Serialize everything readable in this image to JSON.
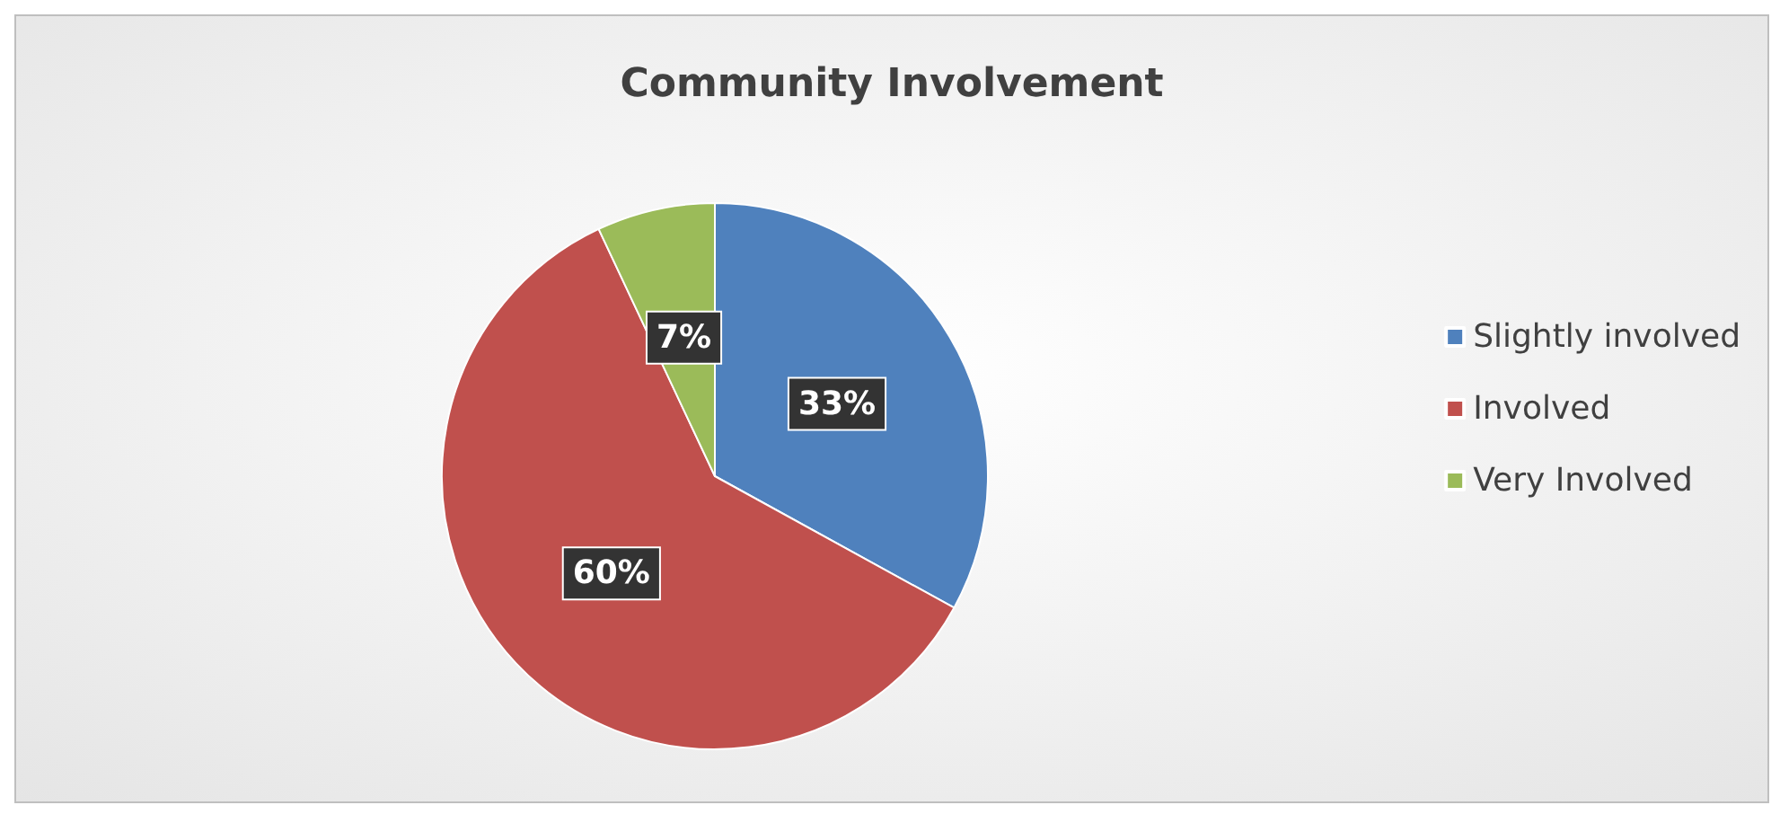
{
  "chart_data": {
    "type": "pie",
    "title": "Community Involvement",
    "categories": [
      "Slightly involved",
      "Involved",
      "Very Involved"
    ],
    "values": [
      33,
      60,
      7
    ],
    "colors": [
      "#4f81bd",
      "#c0504d",
      "#9bbb59"
    ],
    "value_labels": [
      "33%",
      "60%",
      "7%"
    ],
    "legend": "right"
  }
}
